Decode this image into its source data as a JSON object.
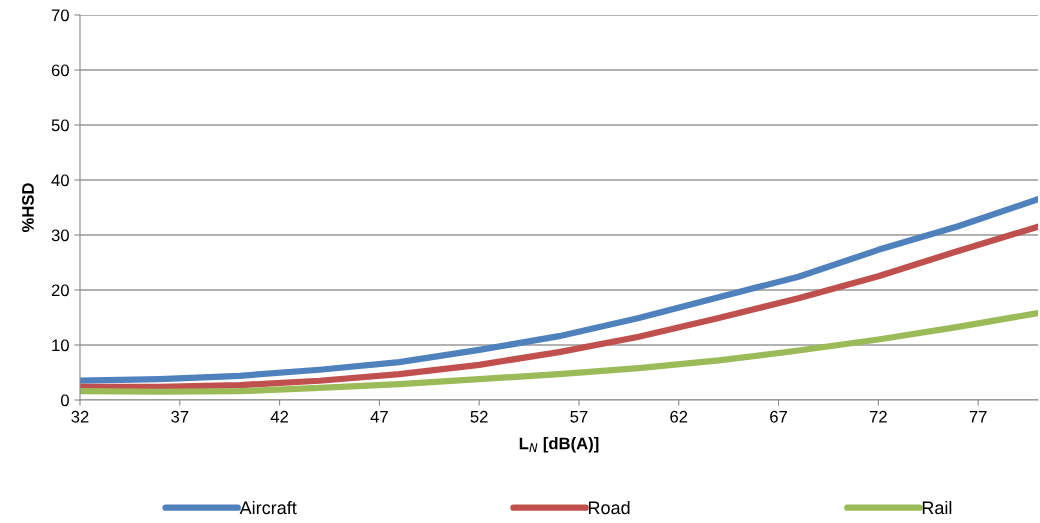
{
  "chart_data": {
    "type": "line",
    "xlabel": "L$_{N}$ [dB(A)]",
    "ylabel": "%HSD",
    "x": [
      32,
      36,
      40,
      44,
      48,
      52,
      56,
      60,
      64,
      68,
      72,
      76,
      80
    ],
    "series": [
      {
        "name": "Aircraft",
        "color": "#4f81bd",
        "values": [
          3.5,
          3.8,
          4.4,
          5.5,
          6.9,
          9.1,
          11.6,
          14.9,
          18.7,
          22.4,
          27.3,
          31.6,
          36.5
        ]
      },
      {
        "name": "Road",
        "color": "#c0504d",
        "values": [
          2.4,
          2.4,
          2.7,
          3.5,
          4.7,
          6.4,
          8.7,
          11.5,
          14.9,
          18.5,
          22.5,
          27.1,
          31.5
        ]
      },
      {
        "name": "Rail",
        "color": "#9bbb59",
        "values": [
          1.6,
          1.5,
          1.6,
          2.2,
          2.9,
          3.8,
          4.7,
          5.8,
          7.2,
          9.0,
          11.0,
          13.3,
          15.8
        ]
      }
    ],
    "xlim": [
      32,
      80
    ],
    "xticks": [
      32,
      37,
      42,
      47,
      52,
      57,
      62,
      67,
      72,
      77
    ],
    "ylim": [
      0,
      70
    ],
    "yticks": [
      0,
      10,
      20,
      30,
      40,
      50,
      60,
      70
    ],
    "grid": "y",
    "legend": "bottom",
    "marker": "none",
    "line_style": "solid"
  }
}
